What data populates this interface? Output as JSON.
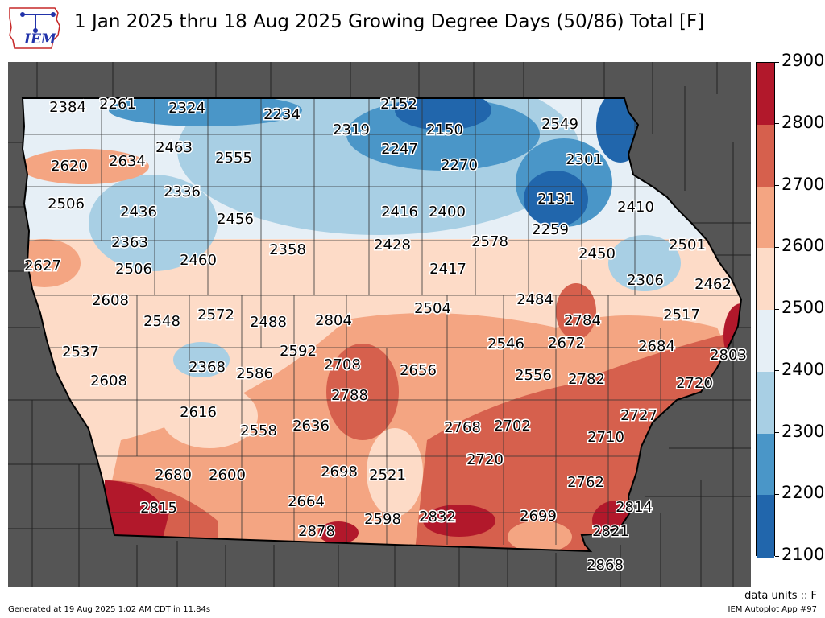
{
  "header": {
    "title": "1 Jan 2025 thru 18 Aug 2025 Growing Degree Days (50/86) Total [F]",
    "logo_text": "IEM"
  },
  "colorbar": {
    "levels": [
      {
        "value": 2900,
        "label": "2900",
        "color": "#b2182b"
      },
      {
        "value": 2800,
        "label": "2800",
        "color": "#d6604d"
      },
      {
        "value": 2700,
        "label": "2700",
        "color": "#f4a582"
      },
      {
        "value": 2600,
        "label": "2600",
        "color": "#fddbc7"
      },
      {
        "value": 2500,
        "label": "2500",
        "color": "#e6eff6"
      },
      {
        "value": 2400,
        "label": "2400",
        "color": "#a8cfe4"
      },
      {
        "value": 2300,
        "label": "2300",
        "color": "#4a96c8"
      },
      {
        "value": 2200,
        "label": "2200",
        "color": "#2166ac"
      },
      {
        "value": 2100,
        "label": "2100",
        "color": "#2166ac"
      }
    ]
  },
  "map": {
    "background_color": "#555555",
    "state": "Iowa",
    "station_values": [
      "2384",
      "2261",
      "2324",
      "2234",
      "2152",
      "2549",
      "2319",
      "2150",
      "2463",
      "2247",
      "2620",
      "2634",
      "2555",
      "2270",
      "2301",
      "2336",
      "2131",
      "2506",
      "2436",
      "2456",
      "2416",
      "2400",
      "2410",
      "2363",
      "2578",
      "2259",
      "2501",
      "2460",
      "2358",
      "2428",
      "2627",
      "2506",
      "2417",
      "2450",
      "2306",
      "2462",
      "2608",
      "2504",
      "2484",
      "2548",
      "2572",
      "2488",
      "2804",
      "2517",
      "2784",
      "2537",
      "2592",
      "2546",
      "2672",
      "2684",
      "2368",
      "2708",
      "2586",
      "2656",
      "2556",
      "2782",
      "2803",
      "2608",
      "2720",
      "2788",
      "2616",
      "2727",
      "2768",
      "2702",
      "2558",
      "2636",
      "2710",
      "2720",
      "2680",
      "2600",
      "2698",
      "2521",
      "2762",
      "2664",
      "2815",
      "2814",
      "2598",
      "2832",
      "2699",
      "2821",
      "2878",
      "2868"
    ]
  },
  "footer": {
    "units": "data units :: F",
    "generated": "Generated at 19 Aug 2025 1:02 AM CDT in 11.84s",
    "app": "IEM Autoplot App #97"
  }
}
